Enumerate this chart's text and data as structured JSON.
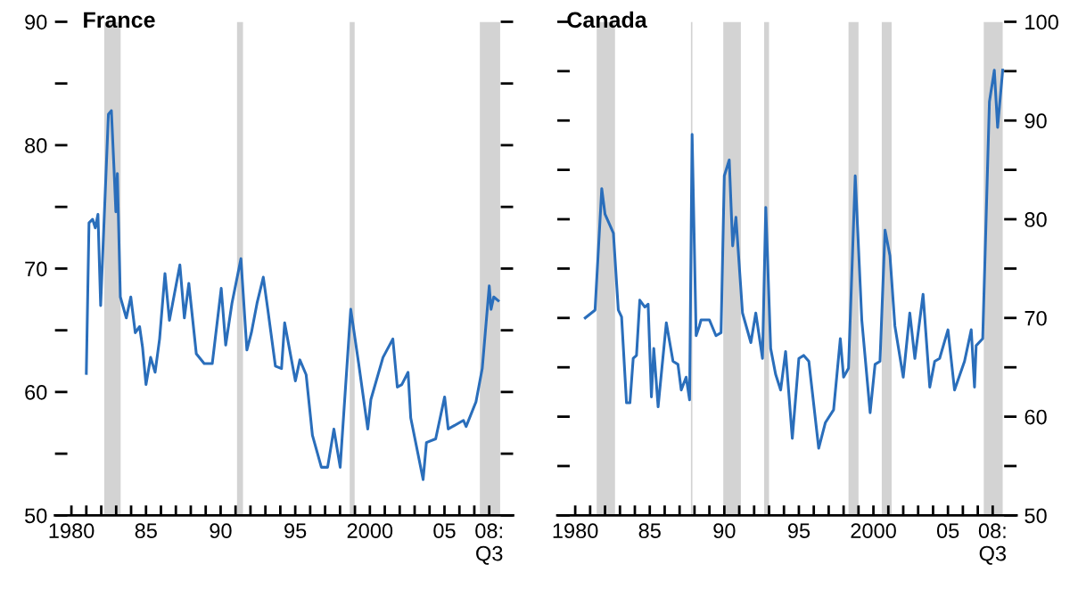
{
  "chart_data": [
    {
      "type": "line",
      "title": "France",
      "x": [
        1981.0,
        1981.18,
        1981.42,
        1981.6,
        1981.78,
        1981.96,
        1982.48,
        1982.68,
        1982.86,
        1982.98,
        1983.08,
        1983.28,
        1983.68,
        1983.98,
        1984.28,
        1984.57,
        1984.77,
        1985.0,
        1985.31,
        1985.61,
        1985.91,
        1986.27,
        1986.57,
        1987.27,
        1987.57,
        1987.87,
        1988.37,
        1988.9,
        1989.44,
        1990.04,
        1990.34,
        1990.76,
        1991.36,
        1991.76,
        1992.06,
        1992.44,
        1992.86,
        1993.16,
        1993.67,
        1994.08,
        1994.29,
        1995.01,
        1995.31,
        1995.73,
        1996.15,
        1996.75,
        1997.17,
        1997.59,
        1998.01,
        1998.72,
        1999.25,
        1999.86,
        2000.07,
        2000.88,
        2001.54,
        2001.84,
        2002.14,
        2002.56,
        2002.74,
        2003.57,
        2003.79,
        2004.41,
        2005.01,
        2005.25,
        2006.27,
        2006.45,
        2007.11,
        2007.53,
        2008.0,
        2008.12,
        2008.3,
        2008.6
      ],
      "series": [
        {
          "color": "#2a6ebb",
          "values": [
            61.5,
            73.7,
            74.0,
            73.3,
            74.4,
            67.0,
            82.5,
            82.8,
            78.0,
            74.6,
            77.7,
            67.7,
            66.0,
            67.7,
            64.8,
            65.3,
            63.6,
            60.6,
            62.8,
            61.6,
            64.3,
            69.6,
            65.8,
            70.3,
            66.0,
            68.8,
            63.1,
            62.3,
            62.3,
            68.4,
            63.8,
            67.2,
            70.8,
            63.4,
            64.8,
            67.2,
            69.3,
            66.7,
            62.1,
            61.9,
            65.6,
            60.9,
            62.6,
            61.4,
            56.5,
            53.9,
            53.9,
            57.0,
            53.9,
            66.7,
            62.3,
            57.0,
            59.4,
            62.8,
            64.3,
            60.4,
            60.6,
            61.6,
            57.9,
            52.9,
            55.9,
            56.2,
            59.6,
            57.0,
            57.7,
            57.2,
            59.2,
            61.9,
            68.6,
            66.7,
            67.7,
            67.4
          ]
        }
      ],
      "bands": [
        {
          "axis": "x",
          "from": 1982.2,
          "to": 1983.3,
          "color": "#d3d3d3"
        },
        {
          "axis": "x",
          "from": 1991.1,
          "to": 1991.5,
          "color": "#d3d3d3"
        },
        {
          "axis": "x",
          "from": 1998.65,
          "to": 1998.98,
          "color": "#d3d3d3"
        },
        {
          "axis": "x",
          "from": 2007.37,
          "to": 2008.73,
          "color": "#d3d3d3"
        }
      ],
      "xlim": [
        1978.9,
        2009.6
      ],
      "xticks": [
        {
          "value": 1980,
          "label": "1980"
        },
        {
          "value": 1981,
          "label": null
        },
        {
          "value": 1982,
          "label": null
        },
        {
          "value": 1983,
          "label": null
        },
        {
          "value": 1984,
          "label": null
        },
        {
          "value": 1985,
          "label": "85"
        },
        {
          "value": 1986,
          "label": null
        },
        {
          "value": 1987,
          "label": null
        },
        {
          "value": 1988,
          "label": null
        },
        {
          "value": 1989,
          "label": null
        },
        {
          "value": 1990,
          "label": "90"
        },
        {
          "value": 1991,
          "label": null
        },
        {
          "value": 1992,
          "label": null
        },
        {
          "value": 1993,
          "label": null
        },
        {
          "value": 1994,
          "label": null
        },
        {
          "value": 1995,
          "label": "95"
        },
        {
          "value": 1996,
          "label": null
        },
        {
          "value": 1997,
          "label": null
        },
        {
          "value": 1998,
          "label": null
        },
        {
          "value": 1999,
          "label": null
        },
        {
          "value": 2000,
          "label": "2000"
        },
        {
          "value": 2001,
          "label": null
        },
        {
          "value": 2002,
          "label": null
        },
        {
          "value": 2003,
          "label": null
        },
        {
          "value": 2004,
          "label": null
        },
        {
          "value": 2005,
          "label": "05"
        },
        {
          "value": 2006,
          "label": null
        },
        {
          "value": 2007,
          "label": null
        },
        {
          "value": 2008,
          "label": "08:\nQ3"
        }
      ],
      "ylim": [
        50,
        90
      ],
      "yticks": [
        50,
        {
          "value": 55,
          "label": null
        },
        60,
        {
          "value": 65,
          "label": null
        },
        70,
        {
          "value": 75,
          "label": null
        },
        80,
        {
          "value": 85,
          "label": null
        },
        90
      ],
      "grid": false,
      "legend": false
    },
    {
      "type": "line",
      "title": "Canada",
      "x": [
        1980.67,
        1981.33,
        1981.78,
        1982.0,
        1982.56,
        1982.89,
        1983.11,
        1983.44,
        1983.67,
        1983.89,
        1984.11,
        1984.33,
        1984.67,
        1984.89,
        1985.11,
        1985.27,
        1985.56,
        1986.11,
        1986.56,
        1986.89,
        1987.11,
        1987.44,
        1987.67,
        1987.84,
        1988.11,
        1988.33,
        1988.44,
        1989.0,
        1989.44,
        1989.78,
        1990.0,
        1990.33,
        1990.56,
        1990.78,
        1991.22,
        1991.78,
        1992.11,
        1992.56,
        1992.78,
        1993.11,
        1993.44,
        1993.78,
        1994.11,
        1994.56,
        1995.0,
        1995.33,
        1995.67,
        1996.33,
        1996.78,
        1997.33,
        1997.78,
        1998.0,
        1998.33,
        1998.78,
        1999.22,
        1999.78,
        2000.11,
        2000.44,
        2000.78,
        2001.11,
        2001.44,
        2002.0,
        2002.44,
        2002.78,
        2003.33,
        2003.78,
        2004.11,
        2004.44,
        2005.0,
        2005.44,
        2006.11,
        2006.56,
        2006.78,
        2006.89,
        2007.33,
        2007.78,
        2008.11,
        2008.33,
        2008.67
      ],
      "series": [
        {
          "color": "#2a6ebb",
          "axis": "y2",
          "values": [
            70.0,
            70.8,
            83.1,
            80.5,
            78.6,
            70.8,
            70.1,
            61.4,
            61.4,
            65.9,
            66.2,
            71.8,
            71.1,
            71.4,
            62.0,
            66.9,
            61.0,
            69.5,
            65.6,
            65.3,
            62.7,
            64.0,
            61.7,
            88.6,
            68.2,
            69.2,
            69.8,
            69.8,
            68.2,
            68.5,
            84.4,
            86.0,
            77.3,
            80.2,
            70.5,
            67.5,
            70.5,
            65.9,
            81.2,
            66.9,
            64.3,
            62.7,
            66.6,
            57.8,
            65.9,
            66.2,
            65.6,
            56.8,
            59.4,
            60.7,
            67.9,
            64.0,
            64.9,
            84.4,
            69.8,
            60.4,
            65.3,
            65.6,
            78.9,
            76.3,
            69.2,
            64.0,
            70.5,
            65.9,
            72.4,
            63.0,
            65.6,
            65.9,
            68.8,
            62.7,
            65.6,
            68.8,
            63.0,
            67.2,
            67.9,
            91.9,
            95.1,
            89.3,
            95.1
          ]
        }
      ],
      "bands": [
        {
          "axis": "x",
          "from": 1981.44,
          "to": 1982.67,
          "color": "#d3d3d3"
        },
        {
          "axis": "x",
          "from": 1987.76,
          "to": 1987.86,
          "color": "#d3d3d3"
        },
        {
          "axis": "x",
          "from": 1989.93,
          "to": 1991.11,
          "color": "#d3d3d3"
        },
        {
          "axis": "x",
          "from": 1992.67,
          "to": 1993.0,
          "color": "#d3d3d3"
        },
        {
          "axis": "x",
          "from": 1998.33,
          "to": 1999.0,
          "color": "#d3d3d3"
        },
        {
          "axis": "x",
          "from": 2000.56,
          "to": 2001.22,
          "color": "#d3d3d3"
        },
        {
          "axis": "x",
          "from": 2007.4,
          "to": 2008.67,
          "color": "#d3d3d3"
        }
      ],
      "xlim": [
        1978.8,
        2009.6
      ],
      "xticks": [
        {
          "value": 1980,
          "label": "1980"
        },
        {
          "value": 1981,
          "label": null
        },
        {
          "value": 1982,
          "label": null
        },
        {
          "value": 1983,
          "label": null
        },
        {
          "value": 1984,
          "label": null
        },
        {
          "value": 1985,
          "label": "85"
        },
        {
          "value": 1986,
          "label": null
        },
        {
          "value": 1987,
          "label": null
        },
        {
          "value": 1988,
          "label": null
        },
        {
          "value": 1989,
          "label": null
        },
        {
          "value": 1990,
          "label": "90"
        },
        {
          "value": 1991,
          "label": null
        },
        {
          "value": 1992,
          "label": null
        },
        {
          "value": 1993,
          "label": null
        },
        {
          "value": 1994,
          "label": null
        },
        {
          "value": 1995,
          "label": "95"
        },
        {
          "value": 1996,
          "label": null
        },
        {
          "value": 1997,
          "label": null
        },
        {
          "value": 1998,
          "label": null
        },
        {
          "value": 1999,
          "label": null
        },
        {
          "value": 2000,
          "label": "2000"
        },
        {
          "value": 2001,
          "label": null
        },
        {
          "value": 2002,
          "label": null
        },
        {
          "value": 2003,
          "label": null
        },
        {
          "value": 2004,
          "label": null
        },
        {
          "value": 2005,
          "label": "05"
        },
        {
          "value": 2006,
          "label": null
        },
        {
          "value": 2007,
          "label": null
        },
        {
          "value": 2008,
          "label": "08:\nQ3"
        }
      ],
      "y2lim": [
        50,
        100
      ],
      "y2ticks": [
        50,
        {
          "value": 55,
          "label": null
        },
        60,
        {
          "value": 65,
          "label": null
        },
        70,
        {
          "value": 75,
          "label": null
        },
        80,
        {
          "value": 85,
          "label": null
        },
        90,
        {
          "value": 95,
          "label": null
        },
        100
      ],
      "grid": false,
      "legend": false
    }
  ]
}
